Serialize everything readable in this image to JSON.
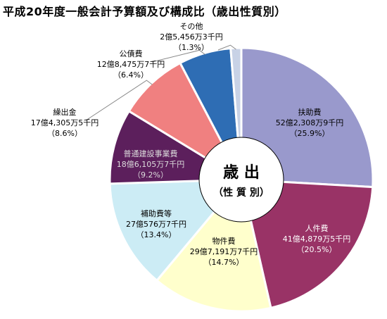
{
  "chart_data": {
    "type": "pie",
    "title": "平成20年度一般会計予算額及び構成比（歳出性質別）",
    "center_label": {
      "line1": "歳 出",
      "line2": "（性 質 別）"
    },
    "unit_note": "",
    "slices": [
      {
        "name": "扶助費",
        "amount": "52億2,308万9千円",
        "percent": 25.9,
        "percent_label": "（25.9%）",
        "color": "#9999cc"
      },
      {
        "name": "人件費",
        "amount": "41億4,879万5千円",
        "percent": 20.5,
        "percent_label": "（20.5%）",
        "color": "#993366"
      },
      {
        "name": "物件費",
        "amount": "29億7,191万7千円",
        "percent": 14.7,
        "percent_label": "（14.7%）",
        "color": "#ffffcc"
      },
      {
        "name": "補助費等",
        "amount": "27億576万7千円",
        "percent": 13.4,
        "percent_label": "（13.4%）",
        "color": "#ccecf5"
      },
      {
        "name": "普通建設事業費",
        "amount": "18億6,105万7千円",
        "percent": 9.2,
        "percent_label": "（9.2%）",
        "color": "#5c1f5c"
      },
      {
        "name": "繰出金",
        "amount": "17億4,305万5千円",
        "percent": 8.6,
        "percent_label": "（8.6%）",
        "color": "#f08080"
      },
      {
        "name": "公債費",
        "amount": "12億8,475万7千円",
        "percent": 6.4,
        "percent_label": "（6.4%）",
        "color": "#2e6db4"
      },
      {
        "name": "その他",
        "amount": "2億5,456万3千円",
        "percent": 1.3,
        "percent_label": "（1.3%）",
        "color": "#c8d2e6"
      }
    ]
  }
}
